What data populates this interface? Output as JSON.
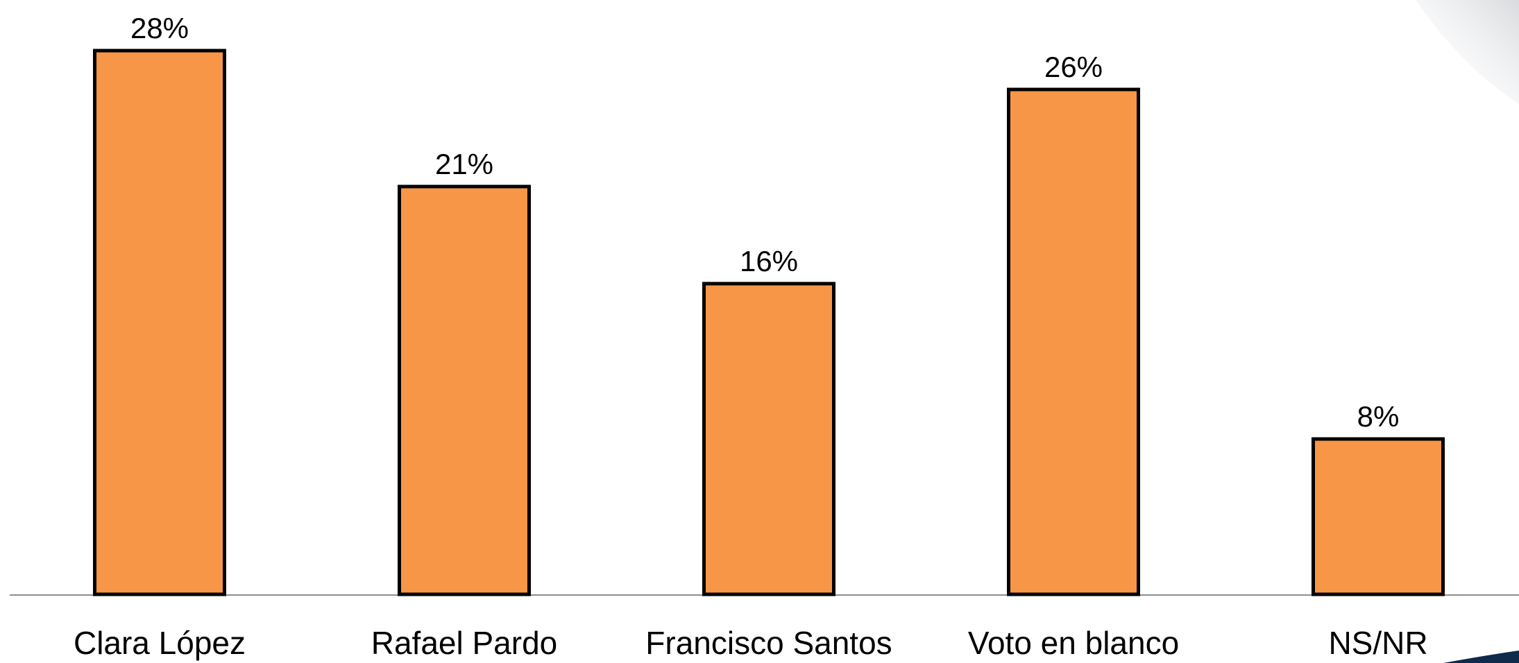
{
  "chart_data": {
    "type": "bar",
    "categories": [
      "Clara López",
      "Rafael Pardo",
      "Francisco Santos",
      "Voto en blanco",
      "NS/NR"
    ],
    "values": [
      28,
      21,
      16,
      26,
      8
    ],
    "value_labels": [
      "28%",
      "21%",
      "16%",
      "26%",
      "8%"
    ],
    "color": "#f79646"
  }
}
